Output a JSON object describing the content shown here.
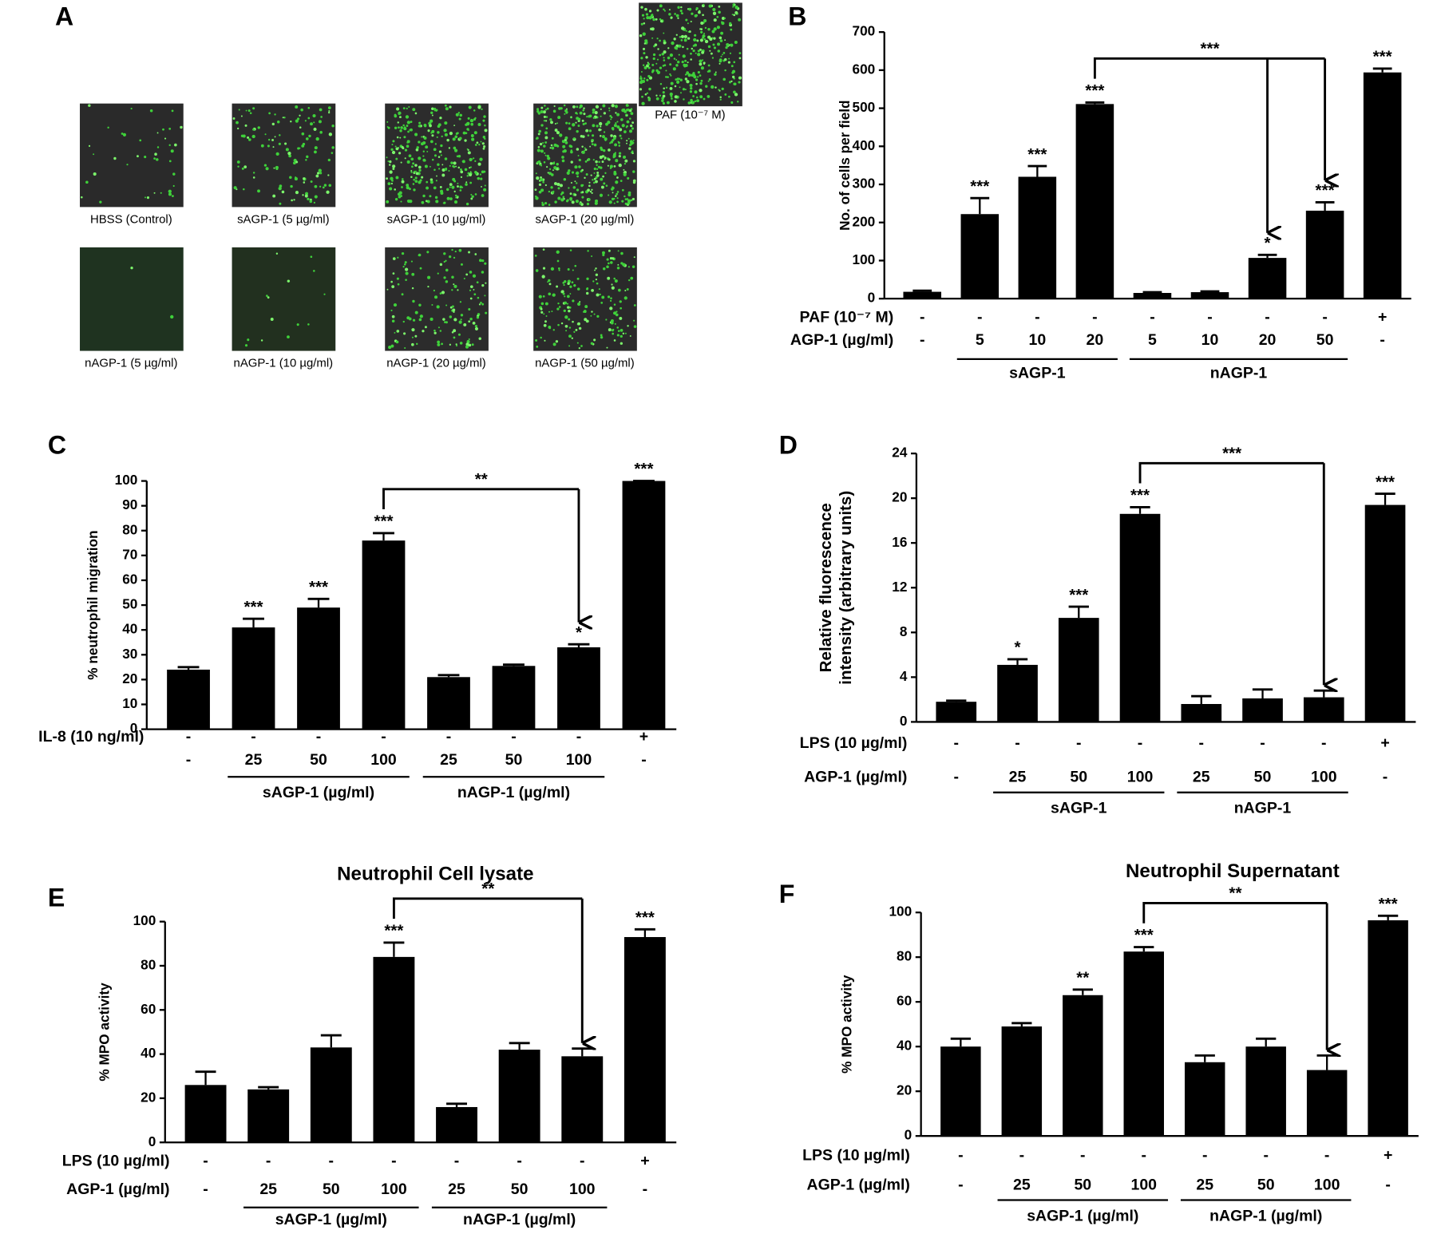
{
  "panel_a": {
    "label": "A",
    "captions": [
      "HBSS (Control)",
      "sAGP-1 (5 µg/ml)",
      "sAGP-1 (10 µg/ml)",
      "sAGP-1 (20 µg/ml)",
      "PAF (10⁻⁷ M)",
      "nAGP-1 (5 µg/ml)",
      "nAGP-1 (10 µg/ml)",
      "nAGP-1 (20 µg/ml)",
      "nAGP-1 (50 µg/ml)"
    ]
  },
  "chart_data": [
    {
      "type": "bar",
      "label": "B",
      "ylabel": "No. of cells per field",
      "color": "#000000",
      "ylim": [
        0,
        700
      ],
      "yticks": [
        0,
        100,
        200,
        300,
        400,
        500,
        600,
        700
      ],
      "values": [
        18,
        222,
        320,
        511,
        15,
        17,
        107,
        231,
        594
      ],
      "errors": [
        3,
        42,
        28,
        4,
        2,
        2,
        8,
        22,
        10
      ],
      "stars": [
        null,
        "***",
        "***",
        "***",
        null,
        null,
        "*",
        "***",
        "***"
      ],
      "rows": [
        {
          "label": "PAF (10⁻⁷ M)",
          "values": [
            "-",
            "-",
            "-",
            "-",
            "-",
            "-",
            "-",
            "-",
            "+"
          ]
        },
        {
          "label": "AGP-1 (µg/ml)",
          "values": [
            "-",
            "5",
            "10",
            "20",
            "5",
            "10",
            "20",
            "50",
            "-"
          ]
        }
      ],
      "groups": [
        {
          "label": "sAGP-1",
          "start": 1,
          "end": 3
        },
        {
          "label": "nAGP-1",
          "start": 4,
          "end": 7
        }
      ],
      "bracket": {
        "from": 3,
        "to": [
          6,
          7
        ],
        "label": "***"
      }
    },
    {
      "type": "bar",
      "label": "C",
      "ylabel": "% neutrophil migration",
      "color": "#000000",
      "ylim": [
        0,
        100
      ],
      "yticks": [
        0,
        10,
        20,
        30,
        40,
        50,
        60,
        70,
        80,
        90,
        100
      ],
      "values": [
        24,
        41,
        49,
        76,
        21,
        25.5,
        33,
        100
      ],
      "errors": [
        1,
        3.5,
        3.5,
        3,
        0.8,
        0.5,
        1.2,
        0
      ],
      "stars": [
        null,
        "***",
        "***",
        "***",
        null,
        null,
        "*",
        "***"
      ],
      "rows": [
        {
          "label": "IL-8 (10 ng/ml)",
          "values": [
            "-",
            "-",
            "-",
            "-",
            "-",
            "-",
            "-",
            "+"
          ]
        },
        {
          "values": [
            "-",
            "25",
            "50",
            "100",
            "25",
            "50",
            "100",
            "-"
          ]
        }
      ],
      "groups": [
        {
          "label": "sAGP-1 (µg/ml)",
          "start": 1,
          "end": 3
        },
        {
          "label": "nAGP-1 (µg/ml)",
          "start": 4,
          "end": 6
        }
      ],
      "bracket": {
        "from": 3,
        "to": [
          6
        ],
        "label": "**"
      }
    },
    {
      "type": "bar",
      "label": "D",
      "ylabel": [
        "Relative fluorescence",
        "intensity (arbitrary units)"
      ],
      "color": "#000000",
      "ylim": [
        0,
        24
      ],
      "yticks": [
        0,
        4,
        8,
        12,
        16,
        20,
        24
      ],
      "values": [
        1.8,
        5.1,
        9.3,
        18.6,
        1.6,
        2.1,
        2.2,
        19.4
      ],
      "errors": [
        0.1,
        0.5,
        1.0,
        0.6,
        0.7,
        0.8,
        0.6,
        1.0
      ],
      "stars": [
        null,
        "*",
        "***",
        "***",
        null,
        null,
        null,
        "***"
      ],
      "rows": [
        {
          "label": "LPS (10 µg/ml)",
          "values": [
            "-",
            "-",
            "-",
            "-",
            "-",
            "-",
            "-",
            "+"
          ]
        },
        {
          "label": "AGP-1 (µg/ml)",
          "values": [
            "-",
            "25",
            "50",
            "100",
            "25",
            "50",
            "100",
            "-"
          ]
        }
      ],
      "groups": [
        {
          "label": "sAGP-1",
          "start": 1,
          "end": 3
        },
        {
          "label": "nAGP-1",
          "start": 4,
          "end": 6
        }
      ],
      "bracket": {
        "from": 3,
        "to": [
          6
        ],
        "label": "***"
      }
    },
    {
      "type": "bar",
      "label": "E",
      "title": "Neutrophil Cell lysate",
      "ylabel": "% MPO activity",
      "color": "#000000",
      "ylim": [
        0,
        100
      ],
      "yticks": [
        0,
        20,
        40,
        60,
        80,
        100
      ],
      "values": [
        26,
        24,
        43,
        84,
        16,
        42,
        39,
        93
      ],
      "errors": [
        6,
        1,
        5.5,
        6.5,
        1.5,
        3,
        3.5,
        3.5
      ],
      "stars": [
        null,
        null,
        null,
        "***",
        null,
        null,
        null,
        "***"
      ],
      "rows": [
        {
          "label": "LPS (10 µg/ml)",
          "values": [
            "-",
            "-",
            "-",
            "-",
            "-",
            "-",
            "-",
            "+"
          ]
        },
        {
          "label": "AGP-1 (µg/ml)",
          "values": [
            "-",
            "25",
            "50",
            "100",
            "25",
            "50",
            "100",
            "-"
          ]
        }
      ],
      "groups": [
        {
          "label": "sAGP-1 (µg/ml)",
          "start": 1,
          "end": 3
        },
        {
          "label": "nAGP-1 (µg/ml)",
          "start": 4,
          "end": 6
        }
      ],
      "bracket": {
        "from": 3,
        "to": [
          6
        ],
        "label": "**"
      }
    },
    {
      "type": "bar",
      "label": "F",
      "title": "Neutrophil Supernatant",
      "ylabel": "% MPO activity",
      "color": "#000000",
      "ylim": [
        0,
        100
      ],
      "yticks": [
        0,
        20,
        40,
        60,
        80,
        100
      ],
      "values": [
        40,
        49,
        63,
        82.5,
        33,
        40,
        29.5,
        96.5
      ],
      "errors": [
        3.5,
        1.5,
        2.5,
        2,
        3,
        3.5,
        6.5,
        2
      ],
      "stars": [
        null,
        null,
        "**",
        "***",
        null,
        null,
        null,
        "***"
      ],
      "rows": [
        {
          "label": "LPS (10 µg/ml)",
          "values": [
            "-",
            "-",
            "-",
            "-",
            "-",
            "-",
            "-",
            "+"
          ]
        },
        {
          "label": "AGP-1 (µg/ml)",
          "values": [
            "-",
            "25",
            "50",
            "100",
            "25",
            "50",
            "100",
            "-"
          ]
        }
      ],
      "groups": [
        {
          "label": "sAGP-1 (µg/ml)",
          "start": 1,
          "end": 3
        },
        {
          "label": "nAGP-1 (µg/ml)",
          "start": 4,
          "end": 6
        }
      ],
      "bracket": {
        "from": 3,
        "to": [
          6
        ],
        "label": "**"
      }
    }
  ]
}
